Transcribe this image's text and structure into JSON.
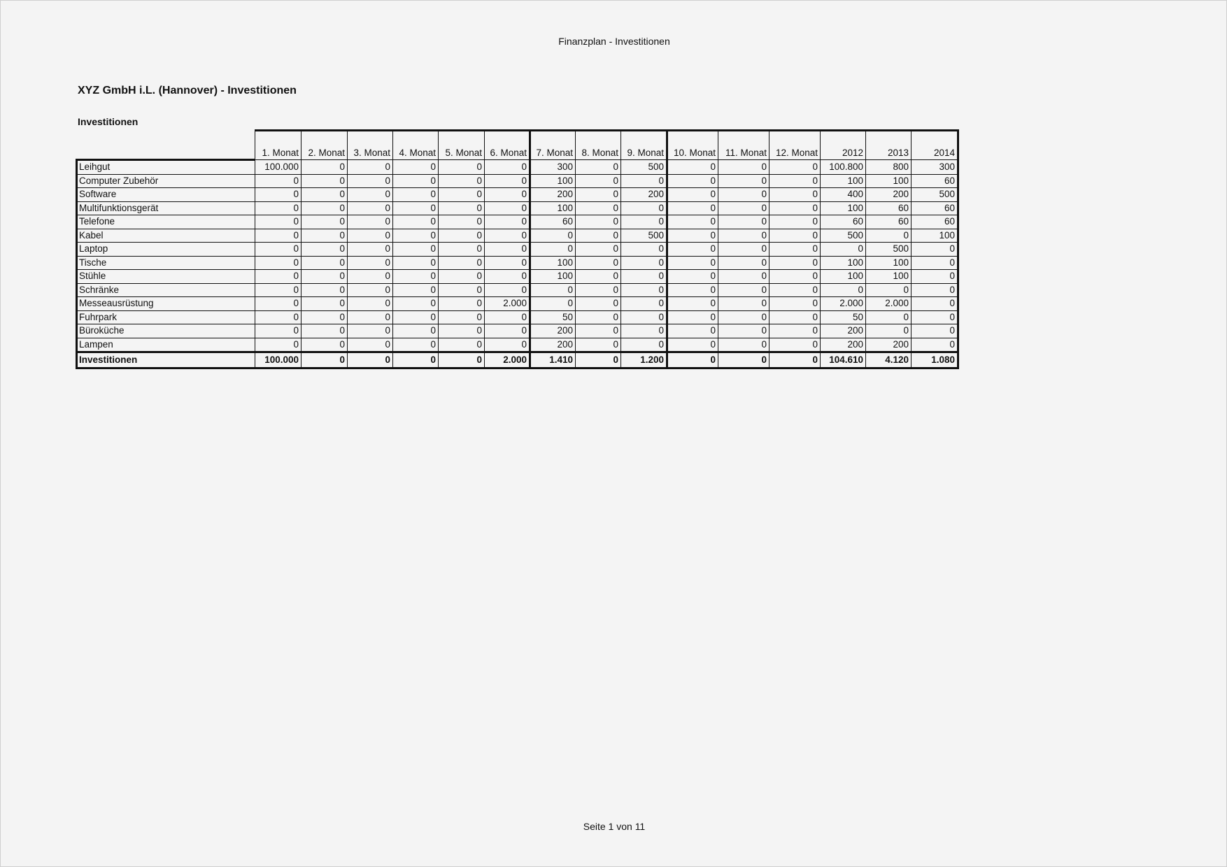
{
  "page_header": "Finanzplan - Investitionen",
  "title": "XYZ GmbH i.L. (Hannover)  - Investitionen",
  "section_title": "Investitionen",
  "footer": "Seite 1 von 11",
  "table": {
    "columns": [
      "1. Monat",
      "2. Monat",
      "3. Monat",
      "4. Monat",
      "5. Monat",
      "6. Monat",
      "7. Monat",
      "8. Monat",
      "9. Monat",
      "10. Monat",
      "11. Monat",
      "12. Monat",
      "2012",
      "2013",
      "2014"
    ],
    "rows": [
      {
        "label": "Leihgut",
        "values": [
          "100.000",
          "0",
          "0",
          "0",
          "0",
          "0",
          "300",
          "0",
          "500",
          "0",
          "0",
          "0",
          "100.800",
          "800",
          "300"
        ]
      },
      {
        "label": "Computer Zubehör",
        "values": [
          "0",
          "0",
          "0",
          "0",
          "0",
          "0",
          "100",
          "0",
          "0",
          "0",
          "0",
          "0",
          "100",
          "100",
          "60"
        ]
      },
      {
        "label": "Software",
        "values": [
          "0",
          "0",
          "0",
          "0",
          "0",
          "0",
          "200",
          "0",
          "200",
          "0",
          "0",
          "0",
          "400",
          "200",
          "500"
        ]
      },
      {
        "label": "Multifunktionsgerät",
        "values": [
          "0",
          "0",
          "0",
          "0",
          "0",
          "0",
          "100",
          "0",
          "0",
          "0",
          "0",
          "0",
          "100",
          "60",
          "60"
        ]
      },
      {
        "label": "Telefone",
        "values": [
          "0",
          "0",
          "0",
          "0",
          "0",
          "0",
          "60",
          "0",
          "0",
          "0",
          "0",
          "0",
          "60",
          "60",
          "60"
        ]
      },
      {
        "label": "Kabel",
        "values": [
          "0",
          "0",
          "0",
          "0",
          "0",
          "0",
          "0",
          "0",
          "500",
          "0",
          "0",
          "0",
          "500",
          "0",
          "100"
        ]
      },
      {
        "label": "Laptop",
        "values": [
          "0",
          "0",
          "0",
          "0",
          "0",
          "0",
          "0",
          "0",
          "0",
          "0",
          "0",
          "0",
          "0",
          "500",
          "0"
        ]
      },
      {
        "label": "Tische",
        "values": [
          "0",
          "0",
          "0",
          "0",
          "0",
          "0",
          "100",
          "0",
          "0",
          "0",
          "0",
          "0",
          "100",
          "100",
          "0"
        ]
      },
      {
        "label": "Stühle",
        "values": [
          "0",
          "0",
          "0",
          "0",
          "0",
          "0",
          "100",
          "0",
          "0",
          "0",
          "0",
          "0",
          "100",
          "100",
          "0"
        ]
      },
      {
        "label": "Schränke",
        "values": [
          "0",
          "0",
          "0",
          "0",
          "0",
          "0",
          "0",
          "0",
          "0",
          "0",
          "0",
          "0",
          "0",
          "0",
          "0"
        ]
      },
      {
        "label": "Messeausrüstung",
        "values": [
          "0",
          "0",
          "0",
          "0",
          "0",
          "2.000",
          "0",
          "0",
          "0",
          "0",
          "0",
          "0",
          "2.000",
          "2.000",
          "0"
        ]
      },
      {
        "label": "Fuhrpark",
        "values": [
          "0",
          "0",
          "0",
          "0",
          "0",
          "0",
          "50",
          "0",
          "0",
          "0",
          "0",
          "0",
          "50",
          "0",
          "0"
        ]
      },
      {
        "label": "Büroküche",
        "values": [
          "0",
          "0",
          "0",
          "0",
          "0",
          "0",
          "200",
          "0",
          "0",
          "0",
          "0",
          "0",
          "200",
          "0",
          "0"
        ]
      },
      {
        "label": "Lampen",
        "values": [
          "0",
          "0",
          "0",
          "0",
          "0",
          "0",
          "200",
          "0",
          "0",
          "0",
          "0",
          "0",
          "200",
          "200",
          "0"
        ]
      }
    ],
    "total": {
      "label": "Investitionen",
      "values": [
        "100.000",
        "0",
        "0",
        "0",
        "0",
        "2.000",
        "1.410",
        "0",
        "1.200",
        "0",
        "0",
        "0",
        "104.610",
        "4.120",
        "1.080"
      ]
    }
  }
}
